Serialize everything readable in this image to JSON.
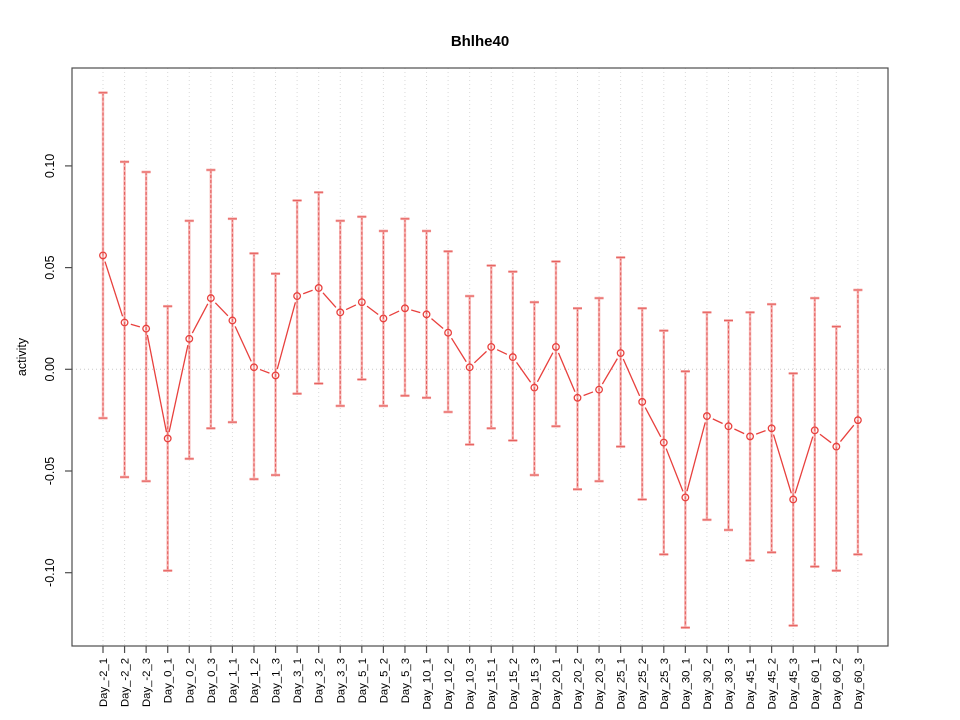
{
  "chart_data": {
    "type": "line",
    "subtype": "errorbar-line",
    "title": "Bhlhe40",
    "xlabel": "",
    "ylabel": "activity",
    "legend": "none",
    "grid": "dotted vertical gridline per category plus dotted horizontal line at y=0",
    "ylim": [
      -0.137,
      0.148
    ],
    "yticks": [
      {
        "value": -0.1,
        "label": "-0.10"
      },
      {
        "value": -0.05,
        "label": "-0.05"
      },
      {
        "value": 0.0,
        "label": "0.00"
      },
      {
        "value": 0.05,
        "label": "0.05"
      },
      {
        "value": 0.1,
        "label": "0.10"
      }
    ],
    "categories": [
      "Day_-2_1",
      "Day_-2_2",
      "Day_-2_3",
      "Day_0_1",
      "Day_0_2",
      "Day_0_3",
      "Day_1_1",
      "Day_1_2",
      "Day_1_3",
      "Day_3_1",
      "Day_3_2",
      "Day_3_3",
      "Day_5_1",
      "Day_5_2",
      "Day_5_3",
      "Day_10_1",
      "Day_10_2",
      "Day_10_3",
      "Day_15_1",
      "Day_15_2",
      "Day_15_3",
      "Day_20_1",
      "Day_20_2",
      "Day_20_3",
      "Day_25_1",
      "Day_25_2",
      "Day_25_3",
      "Day_30_1",
      "Day_30_2",
      "Day_30_3",
      "Day_45_1",
      "Day_45_2",
      "Day_45_3",
      "Day_60_1",
      "Day_60_2",
      "Day_60_3"
    ],
    "series": [
      {
        "name": "activity",
        "values": [
          0.056,
          0.023,
          0.02,
          -0.034,
          0.015,
          0.035,
          0.024,
          0.001,
          -0.003,
          0.036,
          0.04,
          0.028,
          0.033,
          0.025,
          0.03,
          0.027,
          0.018,
          0.001,
          0.011,
          0.006,
          -0.009,
          0.011,
          -0.014,
          -0.01,
          0.008,
          -0.016,
          -0.036,
          -0.063,
          -0.023,
          -0.028,
          -0.033,
          -0.029,
          -0.064,
          -0.03,
          -0.038,
          -0.025
        ],
        "upper": [
          0.136,
          0.102,
          0.097,
          0.031,
          0.073,
          0.098,
          0.074,
          0.057,
          0.047,
          0.083,
          0.087,
          0.073,
          0.075,
          0.068,
          0.074,
          0.068,
          0.058,
          0.036,
          0.051,
          0.048,
          0.033,
          0.053,
          0.03,
          0.035,
          0.055,
          0.03,
          0.019,
          -0.001,
          0.028,
          0.024,
          0.028,
          0.032,
          -0.002,
          0.035,
          0.021,
          0.039
        ],
        "lower": [
          -0.024,
          -0.053,
          -0.055,
          -0.099,
          -0.044,
          -0.029,
          -0.026,
          -0.054,
          -0.052,
          -0.012,
          -0.007,
          -0.018,
          -0.005,
          -0.018,
          -0.013,
          -0.014,
          -0.021,
          -0.037,
          -0.029,
          -0.035,
          -0.052,
          -0.028,
          -0.059,
          -0.055,
          -0.038,
          -0.064,
          -0.091,
          -0.127,
          -0.074,
          -0.079,
          -0.094,
          -0.09,
          -0.126,
          -0.097,
          -0.099,
          -0.091
        ]
      }
    ],
    "colors": {
      "marker_line": "#e8403d",
      "errorbar_solid": "#f5a5a3",
      "errorbar_dash": "#e25351",
      "gridline": "#d9d9d9",
      "zero_line": "#c8c8c8",
      "axis_box": "#4d4d4d",
      "text": "#000000"
    }
  }
}
